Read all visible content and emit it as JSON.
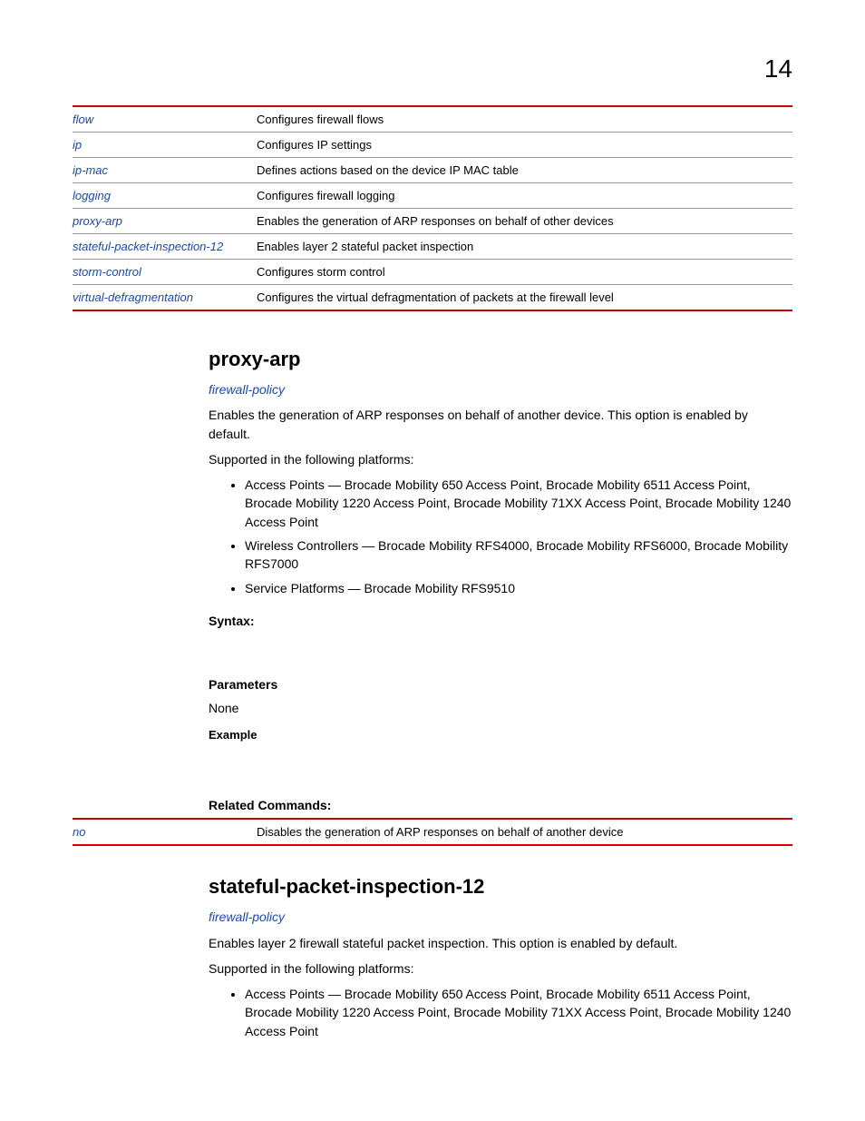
{
  "page_number": "14",
  "commands_table": [
    {
      "cmd": "flow",
      "desc": "Configures firewall flows"
    },
    {
      "cmd": "ip",
      "desc": "Configures IP settings"
    },
    {
      "cmd": "ip-mac",
      "desc": "Defines actions based on the device IP MAC table"
    },
    {
      "cmd": "logging",
      "desc": "Configures firewall logging"
    },
    {
      "cmd": "proxy-arp",
      "desc": "Enables the generation of ARP responses on behalf of other devices"
    },
    {
      "cmd": "stateful-packet-inspection-12",
      "desc": "Enables layer 2 stateful packet inspection"
    },
    {
      "cmd": "storm-control",
      "desc": "Configures storm control"
    },
    {
      "cmd": "virtual-defragmentation",
      "desc": "Configures the virtual defragmentation of packets at the firewall level"
    }
  ],
  "sections": {
    "proxy_arp": {
      "title": "proxy-arp",
      "context_link": "firewall-policy",
      "intro": "Enables the generation of ARP responses on behalf of another device. This option is enabled by default.",
      "supported_label": "Supported in the following platforms:",
      "platforms": [
        "Access Points — Brocade Mobility 650 Access Point, Brocade Mobility 6511 Access Point, Brocade Mobility 1220 Access Point, Brocade Mobility 71XX Access Point, Brocade Mobility 1240 Access Point",
        "Wireless Controllers — Brocade Mobility RFS4000, Brocade Mobility RFS6000, Brocade Mobility RFS7000",
        "Service Platforms — Brocade Mobility RFS9510"
      ],
      "syntax_label": "Syntax:",
      "parameters_label": "Parameters",
      "parameters_value": "None",
      "example_label": "Example",
      "related_label": "Related Commands:",
      "related": [
        {
          "cmd": "no",
          "desc": "Disables the generation of ARP responses on behalf of another device"
        }
      ]
    },
    "spi12": {
      "title": "stateful-packet-inspection-12",
      "context_link": "firewall-policy",
      "intro": "Enables layer 2 firewall stateful packet inspection. This option is enabled by default.",
      "supported_label": "Supported in the following platforms:",
      "platforms": [
        "Access Points — Brocade Mobility 650 Access Point, Brocade Mobility 6511 Access Point, Brocade Mobility 1220 Access Point, Brocade Mobility 71XX Access Point, Brocade Mobility 1240 Access Point"
      ]
    }
  }
}
